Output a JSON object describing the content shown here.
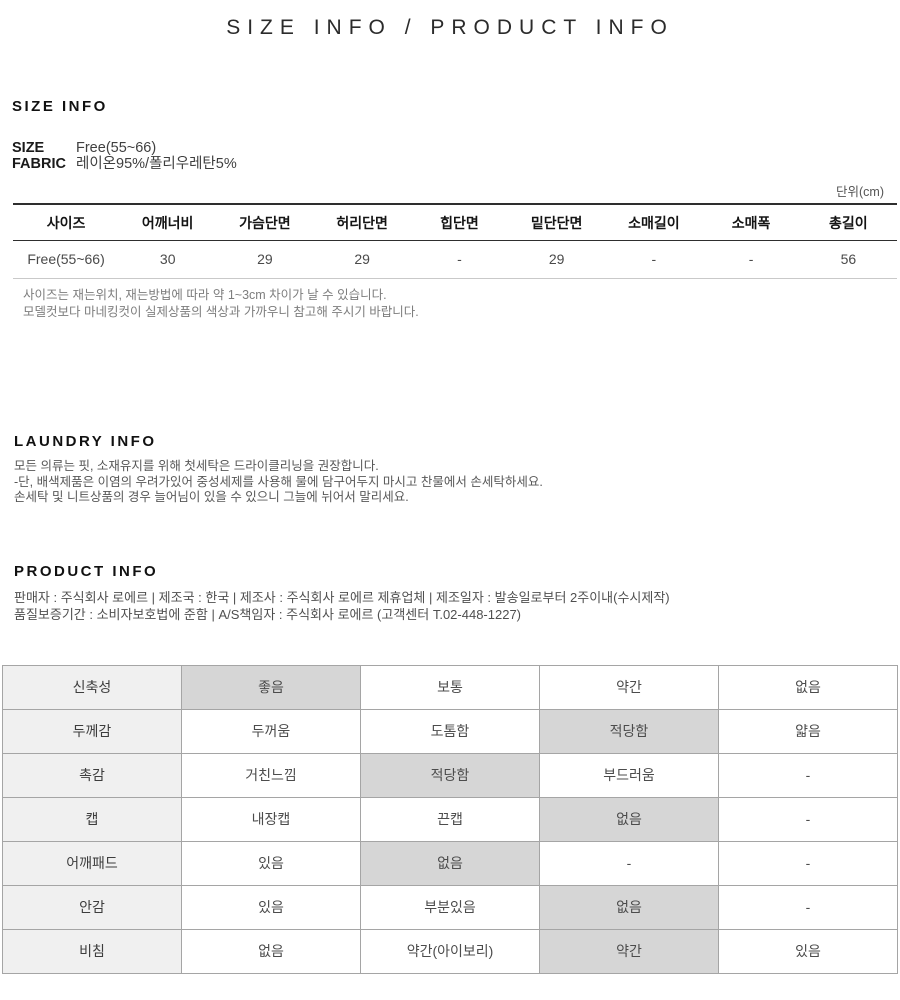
{
  "page_title": "SIZE INFO / PRODUCT INFO",
  "size_info": {
    "heading": "SIZE INFO",
    "meta": [
      {
        "label": "SIZE",
        "value": "Free(55~66)"
      },
      {
        "label": "FABRIC",
        "value": "레이온95%/폴리우레탄5%"
      }
    ],
    "unit_label": "단위(cm)",
    "table": {
      "headers": [
        "사이즈",
        "어깨너비",
        "가슴단면",
        "허리단면",
        "힙단면",
        "밑단단면",
        "소매길이",
        "소매폭",
        "총길이"
      ],
      "row": [
        "Free(55~66)",
        "30",
        "29",
        "29",
        "-",
        "29",
        "-",
        "-",
        "56"
      ]
    },
    "notes": [
      "사이즈는 재는위치, 재는방법에 따라 약 1~3cm 차이가 날 수 있습니다.",
      "모델컷보다 마네킹컷이 실제상품의 색상과 가까우니 참고해 주시기 바랍니다."
    ]
  },
  "laundry_info": {
    "heading": "LAUNDRY INFO",
    "lines": [
      "모든 의류는 핏, 소재유지를 위해 첫세탁은 드라이클리닝을 권장합니다.",
      "-단, 배색제품은 이염의 우려가있어 중성세제를 사용해 물에 담구어두지 마시고 찬물에서 손세탁하세요.",
      "손세탁 및 니트상품의 경우 늘어님이 있을 수 있으니 그늘에 뉘어서 말리세요."
    ]
  },
  "product_info": {
    "heading": "PRODUCT INFO",
    "lines": [
      "판매자 : 주식회사 로에르 | 제조국 : 한국 | 제조사 : 주식회사 로에르 제휴업체 | 제조일자 : 발송일로부터 2주이내(수시제작)",
      "품질보증기간 : 소비자보호법에 준함 | A/S책임자 : 주식회사 로에르 (고객센터 T.02-448-1227)"
    ]
  },
  "attribute_table": {
    "rows": [
      {
        "label": "신축성",
        "options": [
          "좋음",
          "보통",
          "약간",
          "없음"
        ],
        "selected_index": 0
      },
      {
        "label": "두께감",
        "options": [
          "두꺼움",
          "도톰함",
          "적당함",
          "얇음"
        ],
        "selected_index": 2
      },
      {
        "label": "촉감",
        "options": [
          "거친느낌",
          "적당함",
          "부드러움",
          "-"
        ],
        "selected_index": 1
      },
      {
        "label": "캡",
        "options": [
          "내장캡",
          "끈캡",
          "없음",
          "-"
        ],
        "selected_index": 2
      },
      {
        "label": "어깨패드",
        "options": [
          "있음",
          "없음",
          "-",
          "-"
        ],
        "selected_index": 1
      },
      {
        "label": "안감",
        "options": [
          "있음",
          "부분있음",
          "없음",
          "-"
        ],
        "selected_index": 2
      },
      {
        "label": "비침",
        "options": [
          "없음",
          "약간(아이보리)",
          "약간",
          "있음"
        ],
        "selected_index": 2
      }
    ]
  },
  "colors": {
    "highlight_cell": "#d6d6d6",
    "label_column_bg": "#f0f0f0",
    "table_border": "#a5a5a5",
    "heading_text": "#111111",
    "note_text": "#7d7d7d"
  }
}
